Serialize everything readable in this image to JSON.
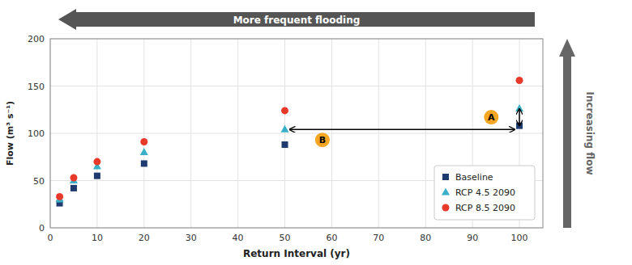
{
  "chart_data": {
    "type": "scatter",
    "x": [
      2,
      5,
      10,
      20,
      50,
      100
    ],
    "series": [
      {
        "name": "Baseline",
        "color": "#1f3a6e",
        "marker": "square",
        "values": [
          26,
          42,
          55,
          68,
          88,
          108
        ]
      },
      {
        "name": "RCP 4.5 2090",
        "color": "#3ab0c8",
        "marker": "triangle",
        "values": [
          30,
          50,
          65,
          80,
          104,
          126
        ]
      },
      {
        "name": "RCP 8.5 2090",
        "color": "#e8392a",
        "marker": "circle",
        "values": [
          33,
          53,
          70,
          91,
          124,
          156
        ]
      }
    ],
    "xlabel": "Return Interval (yr)",
    "ylabel": "Flow (m³ s⁻¹)",
    "xlim": [
      0,
      105
    ],
    "ylim": [
      0,
      200
    ],
    "xticks": [
      0,
      10,
      20,
      30,
      40,
      50,
      60,
      70,
      80,
      90,
      100
    ],
    "yticks": [
      0,
      50,
      100,
      150,
      200
    ],
    "grid": true,
    "legend": "lower right",
    "annotations": [
      {
        "type": "arrow",
        "x": [
          51,
          99
        ],
        "y": [
          104,
          104
        ]
      },
      {
        "type": "arrow",
        "x": [
          100,
          100
        ],
        "y": [
          108,
          126
        ]
      },
      {
        "type": "label",
        "text": "A",
        "x": 94,
        "y": 117,
        "color": "#f5a623"
      },
      {
        "type": "label",
        "text": "B",
        "x": 58,
        "y": 93,
        "color": "#f5a623"
      },
      {
        "type": "banner",
        "text": "More frequent flooding",
        "direction": "left",
        "color": "#555555"
      },
      {
        "type": "banner",
        "text": "Increasing flow",
        "direction": "up",
        "color": "#666666"
      }
    ]
  }
}
